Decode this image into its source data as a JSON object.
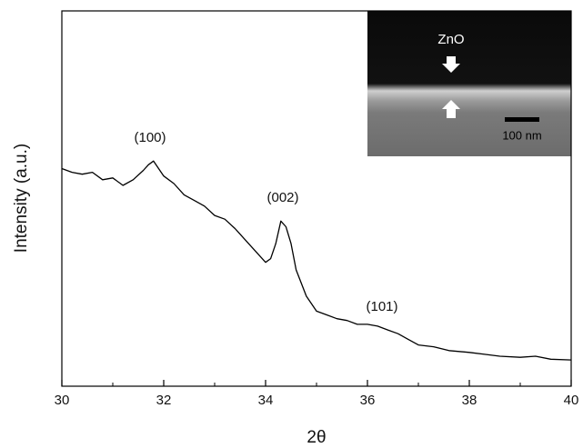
{
  "chart_data": {
    "type": "line",
    "xlabel": "2θ",
    "ylabel": "Intensity (a.u.)",
    "x": [
      30,
      30.2,
      30.4,
      30.6,
      30.8,
      31,
      31.2,
      31.4,
      31.6,
      31.7,
      31.8,
      31.9,
      32,
      32.2,
      32.4,
      32.6,
      32.8,
      33,
      33.2,
      33.4,
      33.6,
      33.8,
      34,
      34.1,
      34.2,
      34.3,
      34.4,
      34.5,
      34.6,
      34.8,
      35,
      35.2,
      35.4,
      35.6,
      35.8,
      36,
      36.2,
      36.4,
      36.6,
      36.8,
      37,
      37.3,
      37.6,
      38,
      38.3,
      38.6,
      39,
      39.3,
      39.6,
      40
    ],
    "values": [
      58,
      57,
      56.5,
      57,
      55,
      55.5,
      53.5,
      55,
      57.5,
      59,
      60,
      58,
      56,
      54,
      51,
      49.5,
      48,
      45.5,
      44.5,
      42,
      39,
      36,
      33,
      34,
      38,
      44,
      42.5,
      38,
      31,
      24,
      20,
      19,
      18,
      17.5,
      16.5,
      16.5,
      16,
      15,
      14,
      12.5,
      11,
      10.5,
      9.5,
      9,
      8.5,
      8,
      7.7,
      8,
      7.2,
      7
    ],
    "color": "#000000",
    "xlim": [
      30,
      40
    ],
    "xticks": [
      30,
      32,
      34,
      36,
      38,
      40
    ],
    "xminorticks": [
      31,
      33,
      35,
      37,
      39
    ],
    "ylim": [
      0,
      100
    ],
    "annotations": [
      "(100)",
      "(002)",
      "(101)"
    ],
    "inset": {
      "label": "ZnO",
      "scale_bar": "100 nm"
    }
  }
}
